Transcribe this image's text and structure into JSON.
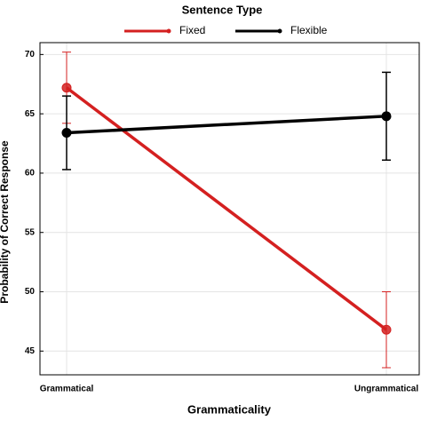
{
  "chart_data": {
    "type": "line",
    "legend_title": "Sentence Type",
    "xlabel": "Grammaticality",
    "ylabel": "Probability of Correct Response",
    "categories": [
      "Grammatical",
      "Ungrammatical"
    ],
    "series": [
      {
        "name": "Fixed",
        "color": "#d42020",
        "values": [
          67.2,
          46.8
        ],
        "errors": [
          3.0,
          3.2
        ]
      },
      {
        "name": "Flexible",
        "color": "#000000",
        "values": [
          63.4,
          64.8
        ],
        "errors": [
          3.1,
          3.7
        ]
      }
    ],
    "ylim": [
      43,
      71
    ],
    "yticks": [
      45,
      50,
      55,
      60,
      65,
      70
    ],
    "grid": true,
    "legend": "top"
  }
}
